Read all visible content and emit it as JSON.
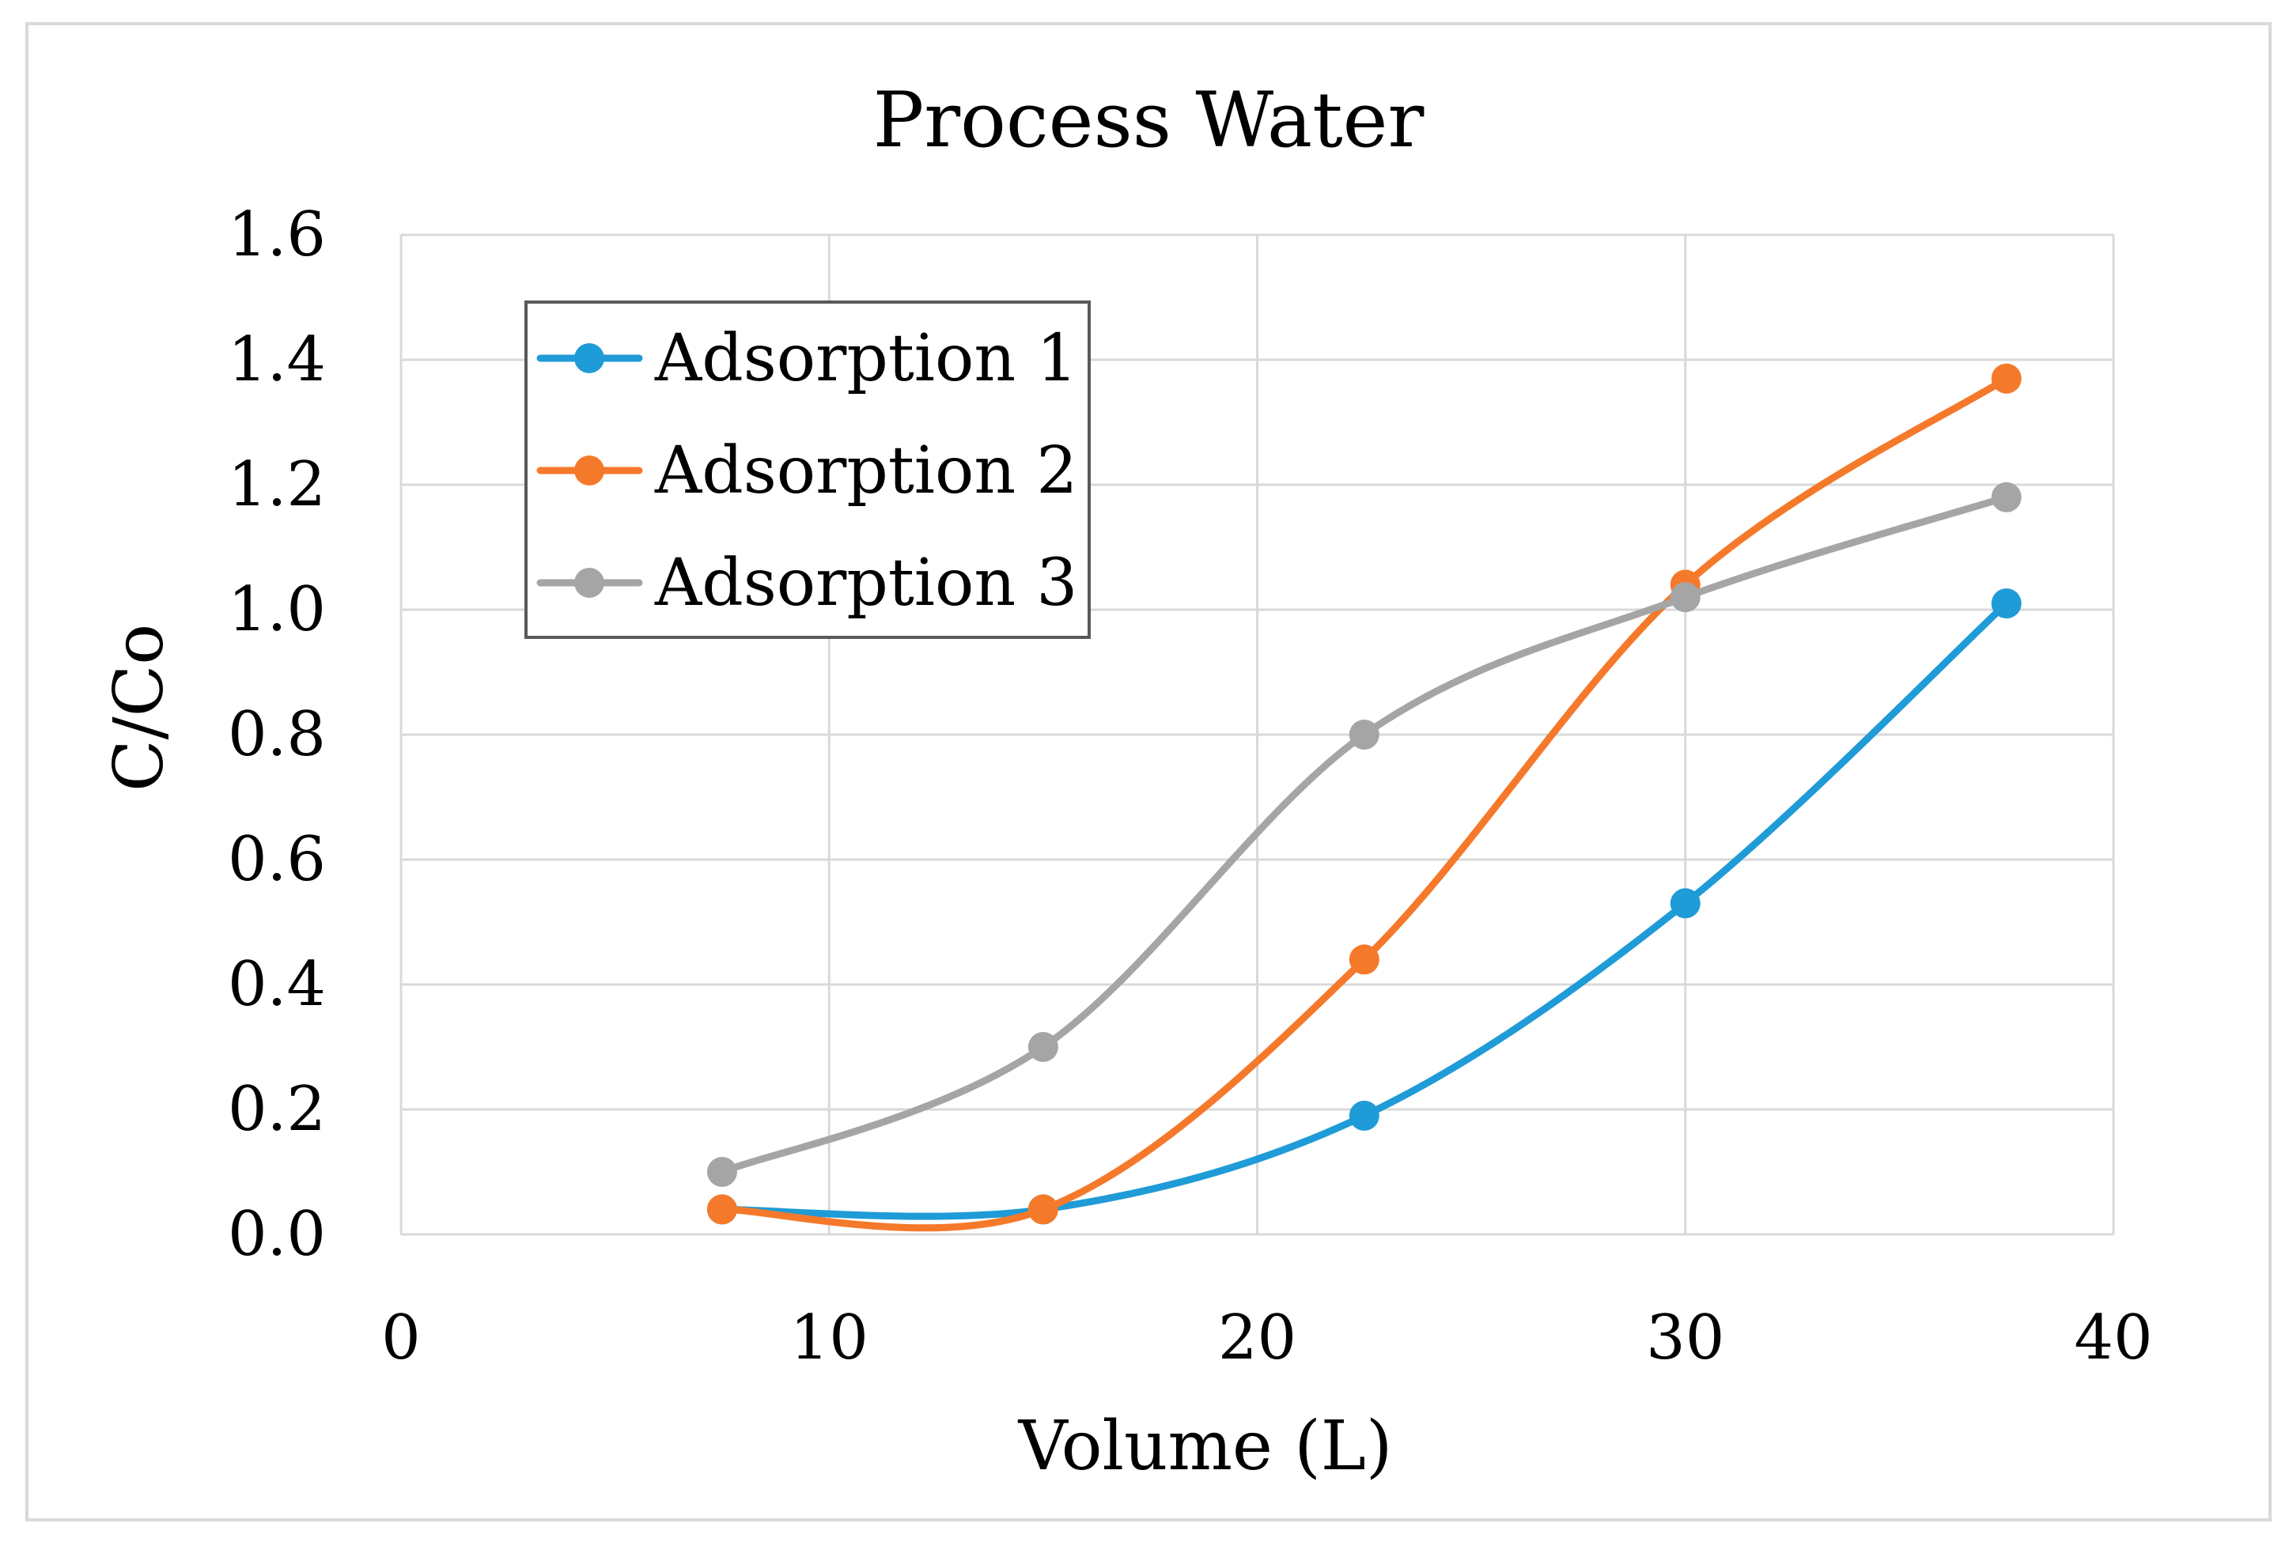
{
  "chart_data": {
    "type": "line",
    "title": "Process Water",
    "xlabel": "Volume (L)",
    "ylabel": "C/Co",
    "xlim": [
      0,
      40
    ],
    "ylim": [
      0,
      1.6
    ],
    "x_ticks": [
      "0",
      "10",
      "20",
      "30",
      "40"
    ],
    "y_ticks": [
      "0.0",
      "0.2",
      "0.4",
      "0.6",
      "0.8",
      "1.0",
      "1.2",
      "1.4",
      "1.6"
    ],
    "grid": true,
    "smoothed": true,
    "legend_position": "top-left",
    "x": [
      7.5,
      15,
      22.5,
      30,
      37.5
    ],
    "series": [
      {
        "name": "Adsorption 1",
        "color": "#1f9bd7",
        "values": [
          0.04,
          0.04,
          0.19,
          0.53,
          1.01
        ]
      },
      {
        "name": "Adsorption 2",
        "color": "#f5792a",
        "values": [
          0.04,
          0.04,
          0.44,
          1.04,
          1.37
        ]
      },
      {
        "name": "Adsorption 3",
        "color": "#a5a5a5",
        "values": [
          0.1,
          0.3,
          0.8,
          1.02,
          1.18
        ]
      }
    ],
    "colors": {
      "grid": "#d9d9d9",
      "frame": "#d9d9d9",
      "legend_border": "#595959"
    }
  }
}
